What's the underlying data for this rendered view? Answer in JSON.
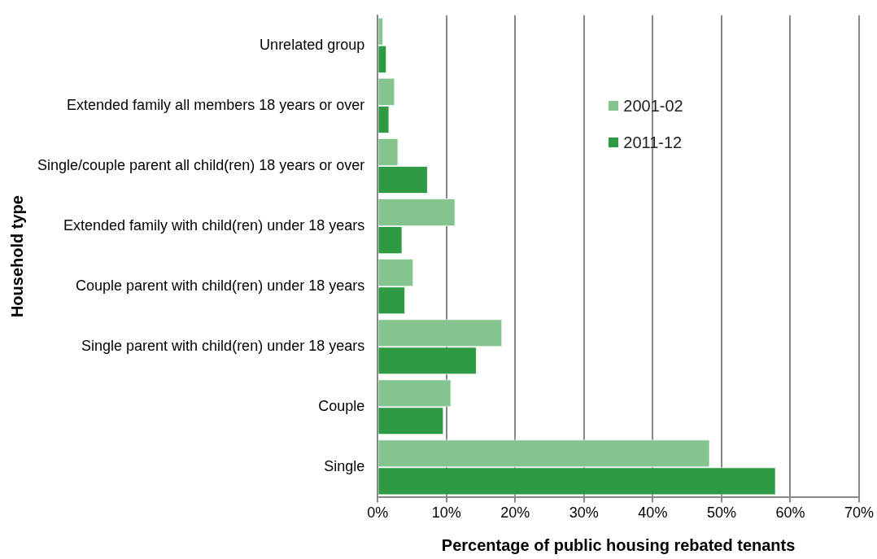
{
  "chart_data": {
    "type": "bar",
    "orientation": "horizontal",
    "xlabel": "Percentage of public housing rebated tenants",
    "ylabel": "Household type",
    "categories": [
      "Unrelated group",
      "Extended family all members 18 years or over",
      "Single/couple parent all child(ren) 18 years or over",
      "Extended family with child(ren) under 18 years",
      "Couple parent with child(ren) under 18 years",
      "Single parent with child(ren) under 18 years",
      "Couple",
      "Single"
    ],
    "series": [
      {
        "name": "2001-02",
        "color": "#83c48f",
        "values": [
          0.8,
          2.5,
          3.0,
          11.3,
          5.2,
          18.1,
          10.7,
          48.3
        ]
      },
      {
        "name": "2011-12",
        "color": "#2e9a44",
        "values": [
          1.3,
          1.7,
          7.3,
          3.6,
          4.0,
          14.4,
          9.6,
          57.9
        ]
      }
    ],
    "xlim": [
      0,
      70
    ],
    "xticks": [
      {
        "value": 0,
        "label": "0%"
      },
      {
        "value": 10,
        "label": "10%"
      },
      {
        "value": 20,
        "label": "20%"
      },
      {
        "value": 30,
        "label": "30%"
      },
      {
        "value": 40,
        "label": "40%"
      },
      {
        "value": 50,
        "label": "50%"
      },
      {
        "value": 60,
        "label": "60%"
      },
      {
        "value": 70,
        "label": "70%"
      }
    ],
    "grid": "x",
    "legend": "top right"
  }
}
